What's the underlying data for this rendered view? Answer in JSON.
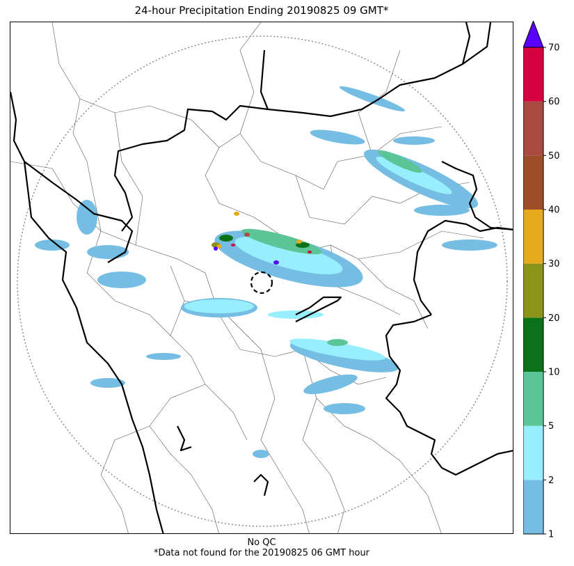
{
  "title": "24-hour Precipitation Ending 20190825 09 GMT*",
  "footer": {
    "qc_note": "No QC",
    "missing_note": "*Data not found for the 20190825 06 GMT hour"
  },
  "legend": {
    "levels": [
      {
        "value": "1",
        "color": "#76bde4"
      },
      {
        "value": "2",
        "color": "#97effd"
      },
      {
        "value": "5",
        "color": "#5cc598"
      },
      {
        "value": "10",
        "color": "#0c7219"
      },
      {
        "value": "20",
        "color": "#8b9418"
      },
      {
        "value": "30",
        "color": "#e5aa1d"
      },
      {
        "value": "40",
        "color": "#9d4e28"
      },
      {
        "value": "50",
        "color": "#a94a43"
      },
      {
        "value": "60",
        "color": "#d70141"
      },
      {
        "value": "70",
        "color": "#5a00ff"
      }
    ],
    "extend": "max"
  }
}
